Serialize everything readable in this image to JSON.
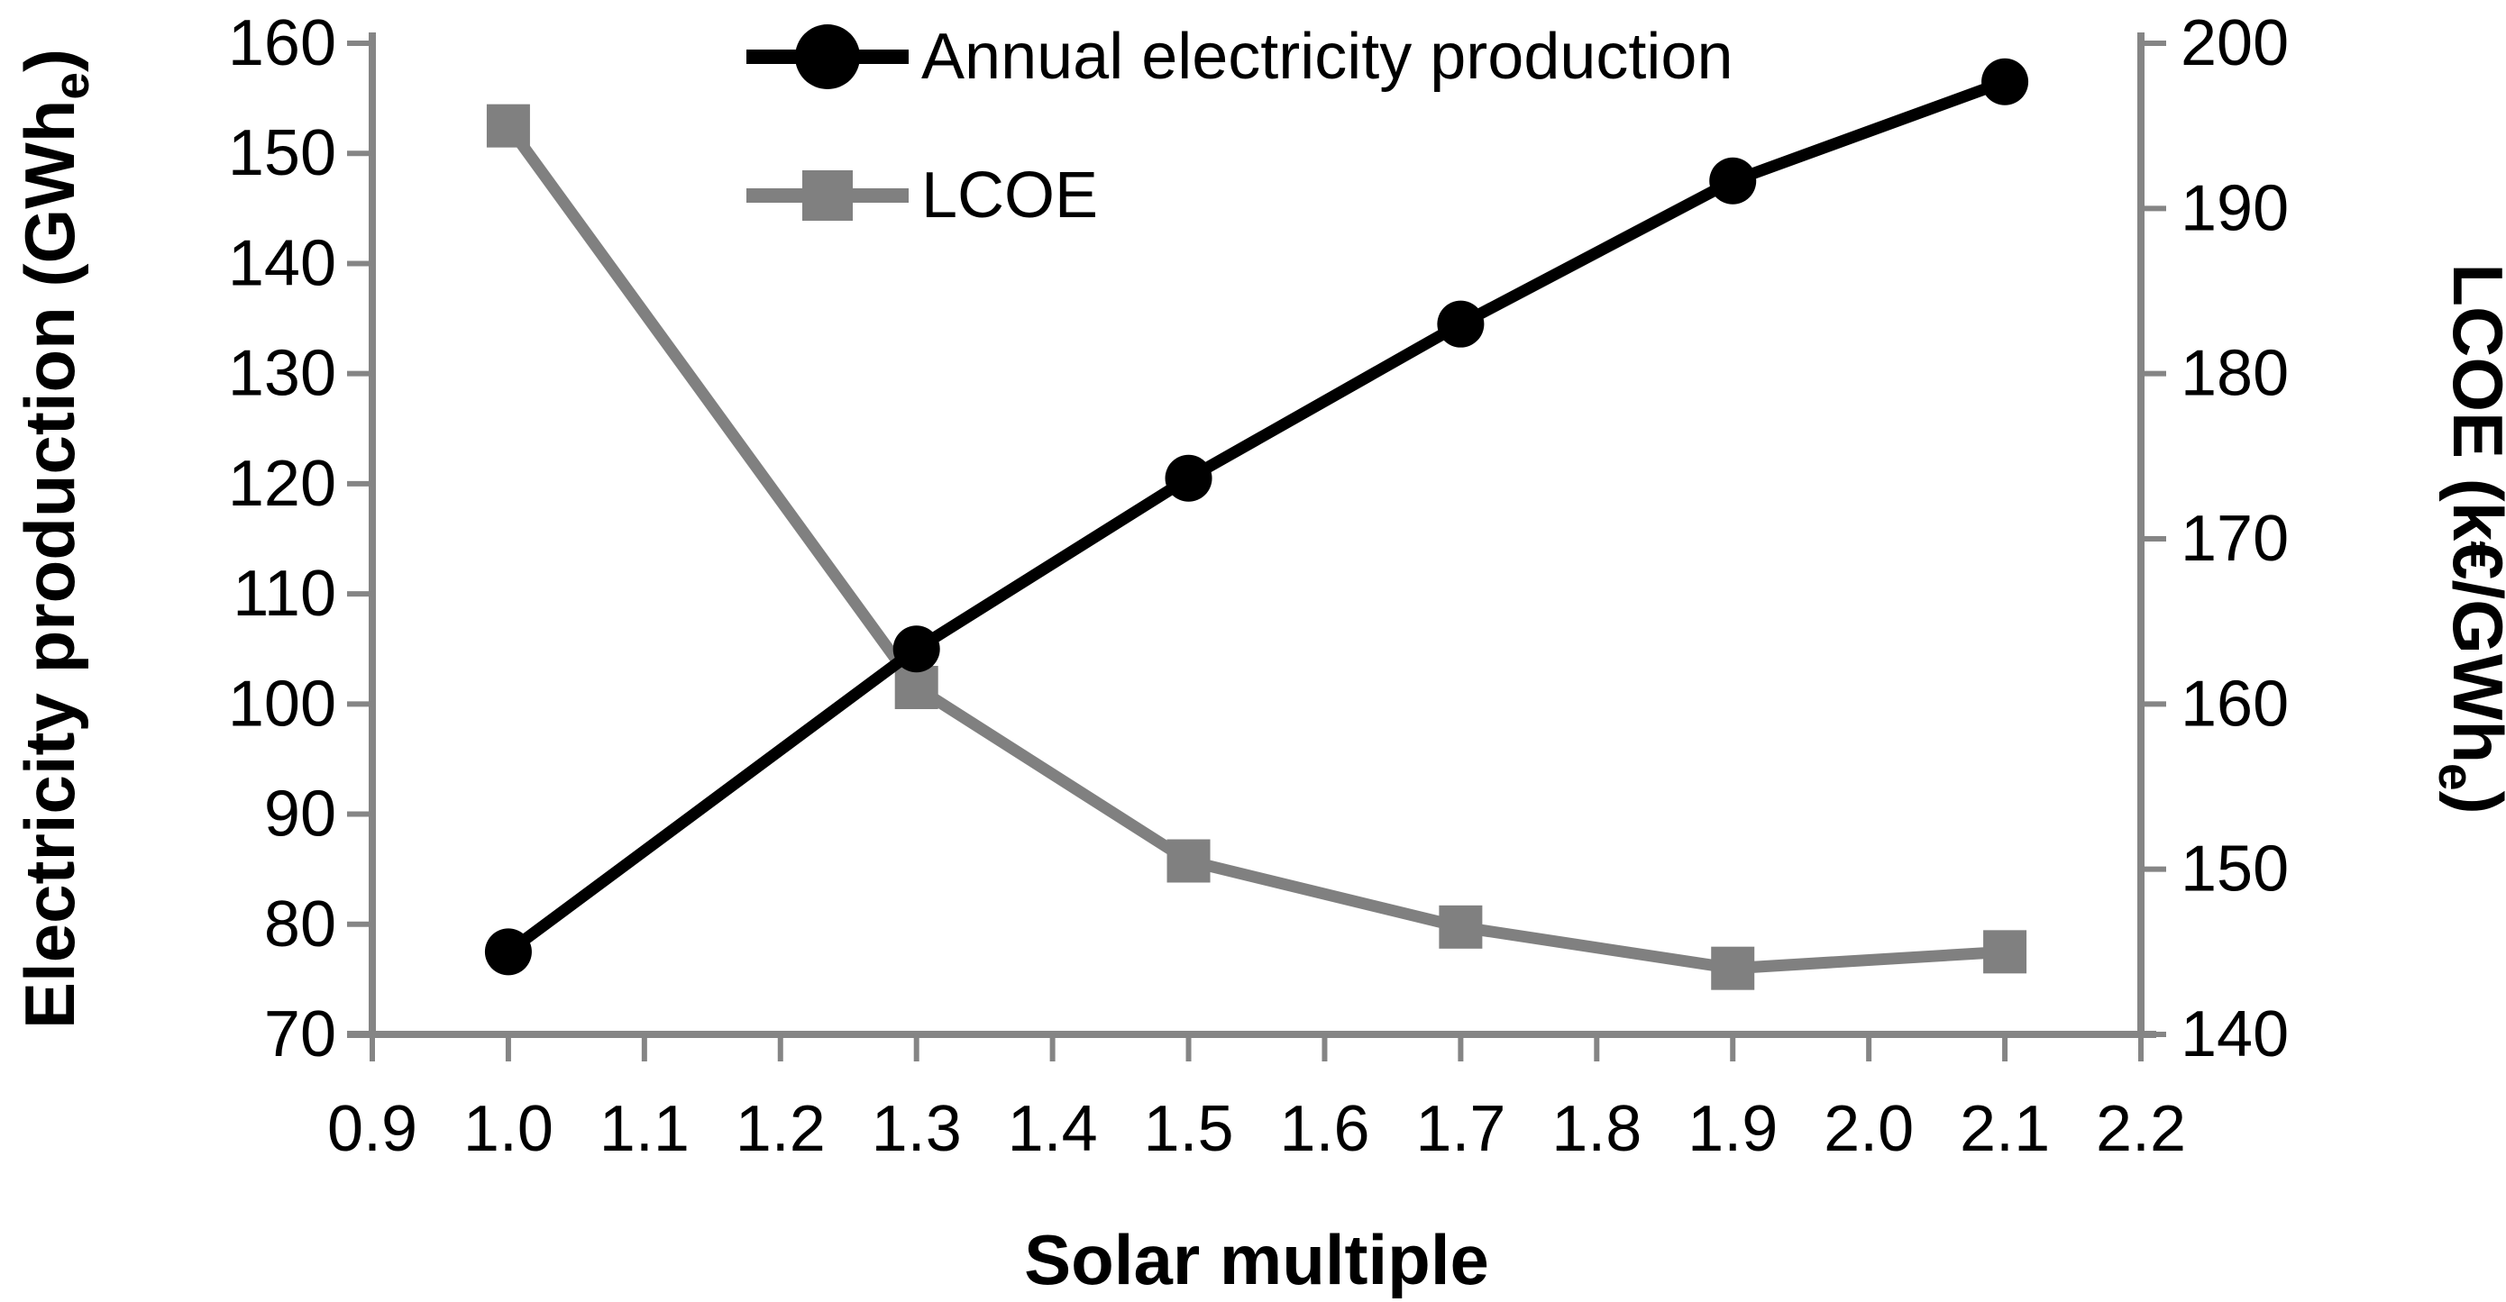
{
  "chart_data": {
    "type": "line",
    "title": "",
    "xlabel": "Solar multiple",
    "ylabel_left": {
      "pre": "Electricity production (GWh",
      "sub": "e",
      "post": ")"
    },
    "ylabel_right": {
      "pre": "LCOE (k€/GWh",
      "sub": "e",
      "post": ")"
    },
    "x": [
      1.0,
      1.3,
      1.5,
      1.7,
      1.9,
      2.1
    ],
    "series": [
      {
        "name": "Annual electricity production",
        "axis": "left",
        "color": "#000000",
        "marker": "circle",
        "values": [
          77.5,
          105,
          120.5,
          134.5,
          147.5,
          156.5
        ]
      },
      {
        "name": "LCOE",
        "axis": "right",
        "color": "#808080",
        "marker": "square",
        "values": [
          195,
          161,
          150.5,
          146.5,
          144,
          145
        ]
      }
    ],
    "x_ticks": [
      0.9,
      1.0,
      1.1,
      1.2,
      1.3,
      1.4,
      1.5,
      1.6,
      1.7,
      1.8,
      1.9,
      2.0,
      2.1,
      2.2
    ],
    "left_ticks": [
      70,
      80,
      90,
      100,
      110,
      120,
      130,
      140,
      150,
      160
    ],
    "right_ticks": [
      140,
      150,
      160,
      170,
      180,
      190,
      200
    ],
    "xlim": [
      0.9,
      2.2
    ],
    "ylim_left": [
      70,
      160
    ],
    "ylim_right": [
      140,
      200
    ],
    "grid": false,
    "legend_position": "top-center",
    "axis_color": "#858585"
  },
  "legend": {
    "items": [
      {
        "label": "Annual electricity production"
      },
      {
        "label": "LCOE"
      }
    ]
  }
}
